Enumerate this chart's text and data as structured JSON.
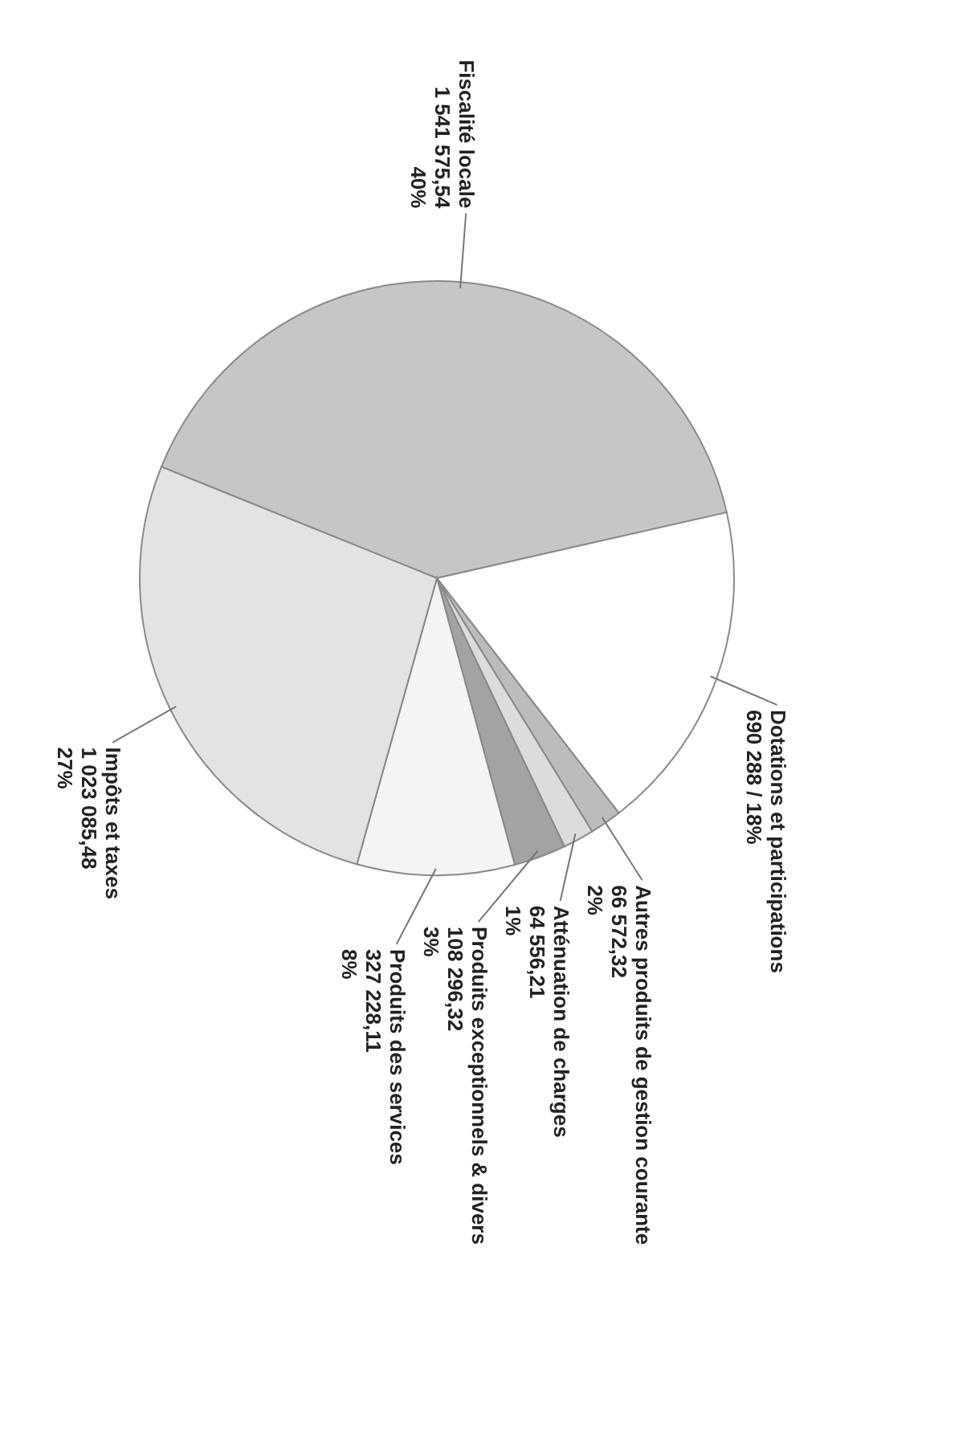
{
  "chart_data": {
    "type": "pie",
    "categories": [
      "Fiscalité locale",
      "Dotations et participations",
      "Autres produits de gestion courante",
      "Atténuation de charges",
      "Produits exceptionnels & divers",
      "Produits des services",
      "Impôts et taxes"
    ],
    "values": [
      1541575.54,
      690288,
      66572.32,
      64556.21,
      108296.32,
      327228.11,
      1023085.48
    ],
    "value_labels": [
      "1 541 575,54\n40%",
      "690 288 / 18%",
      "66 572,32\n2%",
      "64 556,21\n1%",
      "108 296,32\n3%",
      "327 228,11\n8%",
      "1 023 085,48\n27%"
    ],
    "colors": [
      "#c6c6c6",
      "#ffffff",
      "#bcbcbc",
      "#dcdcdc",
      "#a3a3a3",
      "#f4f4f4",
      "#e3e3e3"
    ]
  }
}
